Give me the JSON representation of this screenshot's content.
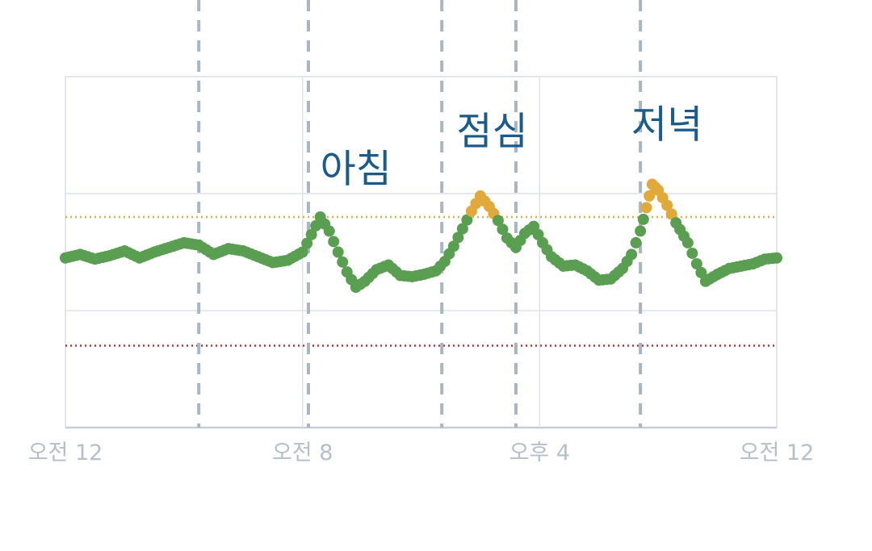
{
  "chart_data": {
    "type": "scatter",
    "title": "",
    "xlabel": "",
    "ylabel": "",
    "x_tick_labels": [
      {
        "hour": 0,
        "label": "오전 12"
      },
      {
        "hour": 8,
        "label": "오전 8"
      },
      {
        "hour": 16,
        "label": "오후 4"
      },
      {
        "hour": 24,
        "label": "오전 12"
      }
    ],
    "xlim": [
      0,
      24
    ],
    "ylim": [
      0,
      300
    ],
    "grid": true,
    "y_grid_values": [
      100,
      200,
      300
    ],
    "vertical_dashed_hours": [
      4.5,
      8.2,
      12.7,
      15.2,
      19.4
    ],
    "reference_lines": [
      {
        "value": 180,
        "color": "#d4b45a"
      },
      {
        "value": 70,
        "color": "#a03a3a"
      }
    ],
    "annotations": [
      {
        "hour": 9.8,
        "value": 210,
        "text": "아침"
      },
      {
        "hour": 14.4,
        "value": 242,
        "text": "점심"
      },
      {
        "hour": 20.3,
        "value": 248,
        "text": "저녁"
      }
    ],
    "series": [
      {
        "color_normal": "#5a9e52",
        "color_high": "#e0a93a",
        "high_threshold": 180,
        "points": [
          [
            0,
            145
          ],
          [
            0.5,
            148
          ],
          [
            1,
            144
          ],
          [
            1.5,
            147
          ],
          [
            2,
            151
          ],
          [
            2.5,
            145
          ],
          [
            3,
            150
          ],
          [
            3.5,
            154
          ],
          [
            4,
            158
          ],
          [
            4.5,
            156
          ],
          [
            5,
            148
          ],
          [
            5.5,
            153
          ],
          [
            6,
            151
          ],
          [
            6.5,
            146
          ],
          [
            7,
            141
          ],
          [
            7.5,
            143
          ],
          [
            8,
            150
          ],
          [
            8.3,
            165
          ],
          [
            8.6,
            180
          ],
          [
            8.9,
            168
          ],
          [
            9.2,
            150
          ],
          [
            9.5,
            133
          ],
          [
            9.8,
            120
          ],
          [
            10.1,
            125
          ],
          [
            10.5,
            135
          ],
          [
            10.9,
            139
          ],
          [
            11.3,
            130
          ],
          [
            11.7,
            129
          ],
          [
            12.1,
            131
          ],
          [
            12.5,
            134
          ],
          [
            12.8,
            142
          ],
          [
            13.1,
            155
          ],
          [
            13.4,
            170
          ],
          [
            13.7,
            185
          ],
          [
            14,
            198
          ],
          [
            14.3,
            189
          ],
          [
            14.6,
            177
          ],
          [
            14.9,
            162
          ],
          [
            15.2,
            154
          ],
          [
            15.5,
            166
          ],
          [
            15.8,
            172
          ],
          [
            16.1,
            158
          ],
          [
            16.4,
            146
          ],
          [
            16.8,
            138
          ],
          [
            17.2,
            139
          ],
          [
            17.6,
            134
          ],
          [
            18,
            126
          ],
          [
            18.4,
            127
          ],
          [
            18.8,
            136
          ],
          [
            19.1,
            148
          ],
          [
            19.4,
            168
          ],
          [
            19.6,
            188
          ],
          [
            19.8,
            208
          ],
          [
            20,
            203
          ],
          [
            20.3,
            190
          ],
          [
            20.6,
            175
          ],
          [
            21,
            158
          ],
          [
            21.3,
            140
          ],
          [
            21.6,
            125
          ],
          [
            22,
            131
          ],
          [
            22.4,
            136
          ],
          [
            22.8,
            138
          ],
          [
            23.2,
            140
          ],
          [
            23.6,
            144
          ],
          [
            24,
            145
          ]
        ]
      }
    ]
  }
}
